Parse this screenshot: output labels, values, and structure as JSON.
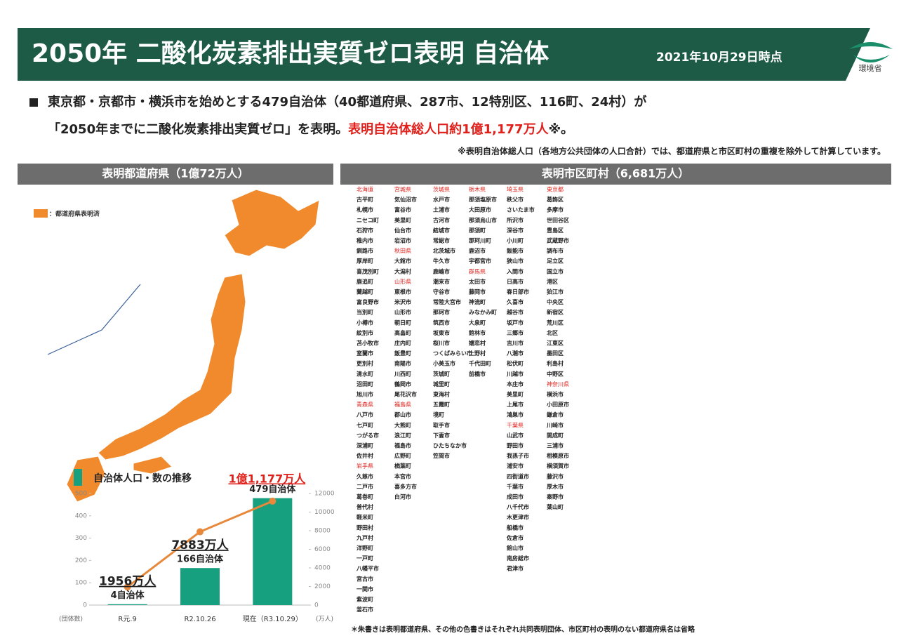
{
  "header": {
    "title": "2050年 二酸化炭素排出実質ゼロ表明 自治体",
    "date": "2021年10月29日時点",
    "logo": "環境省"
  },
  "summary": {
    "line1": "東京都・京都市・横浜市を始めとする479自治体（40都道府県、287市、12特別区、116町、24村）が",
    "line2": "「2050年までに二酸化炭素排出実質ゼロ」を表明。",
    "line2_red": "表明自治体総人口約1億1,177万人",
    "line2_end": "※。",
    "note": "※表明自治体総人口（各地方公共団体の人口合計）では、都道府県と市区町村の重複を除外して計算しています。"
  },
  "left_panel": {
    "title": "表明都道府県（1億72万人）",
    "legend": "：都道府県表明済"
  },
  "right_panel": {
    "title": "表明市区町村（6,681万人）"
  },
  "municipalities": {
    "columns": [
      [
        {
          "prefecture": "北海道",
          "names": [
            "古平町",
            "札幌市",
            "ニセコ町",
            "石狩市",
            "稚内市",
            "釧路市",
            "厚岸町",
            "喜茂別町",
            "鹿追町",
            "蘭越町",
            "富良野市",
            "当別町",
            "小樽市",
            "紋別市",
            "苫小牧市",
            "室蘭市",
            "更別村",
            "清水町",
            "沼田町",
            "旭川市"
          ]
        },
        {
          "prefecture": "青森県",
          "names": [
            "八戸市",
            "七戸町",
            "つがる市",
            "深浦町",
            "佐井村"
          ]
        },
        {
          "prefecture": "岩手県",
          "names": [
            "久慈市",
            "二戸市",
            "葛巻町",
            "普代村",
            "軽米町",
            "野田村",
            "九戸村",
            "洋野町",
            "一戸町",
            "八幡平市",
            "宮古市",
            "一関市",
            "紫波町",
            "釜石市"
          ]
        }
      ],
      [
        {
          "prefecture": "宮城県",
          "names": [
            "気仙沼市",
            "富谷市",
            "美里町",
            "仙台市",
            "岩沼市"
          ]
        },
        {
          "prefecture": "秋田県",
          "names": [
            "大館市",
            "大潟村"
          ]
        },
        {
          "prefecture": "山形県",
          "names": [
            "東根市",
            "米沢市",
            "山形市",
            "朝日町",
            "高畠町",
            "庄内町",
            "飯豊町",
            "南陽市",
            "川西町",
            "鶴岡市",
            "尾花沢市"
          ]
        },
        {
          "prefecture": "福島県",
          "names": [
            "郡山市",
            "大熊町",
            "浪江町",
            "福島市",
            "広野町",
            "楢葉町",
            "本宮市",
            "喜多方市",
            "白河市"
          ]
        }
      ],
      [
        {
          "prefecture": "茨城県",
          "names": [
            "水戸市",
            "土浦市",
            "古河市",
            "結城市",
            "常総市",
            "北茨城市",
            "牛久市",
            "鹿嶋市",
            "潮来市",
            "守谷市",
            "常陸大宮市",
            "那珂市",
            "筑西市",
            "坂東市",
            "桜川市",
            "つくばみらい市",
            "小美玉市",
            "茨城町",
            "城里町",
            "東海村",
            "五霞町",
            "境町",
            "取手市",
            "下妻市",
            "ひたちなか市",
            "笠間市"
          ]
        }
      ],
      [
        {
          "prefecture": "栃木県",
          "names": [
            "那須塩原市",
            "大田原市",
            "那須烏山市",
            "那須町",
            "那珂川町",
            "鹿沼市",
            "宇都宮市"
          ]
        },
        {
          "prefecture": "群馬県",
          "names": [
            "太田市",
            "藤岡市",
            "神流町",
            "みなかみ町",
            "大泉町",
            "館林市",
            "嬬恋村",
            "上野村",
            "千代田町",
            "前橋市"
          ]
        }
      ],
      [
        {
          "prefecture": "埼玉県",
          "names": [
            "秩父市",
            "さいたま市",
            "所沢市",
            "深谷市",
            "小川町",
            "飯能市",
            "狭山市",
            "入間市",
            "日高市",
            "春日部市",
            "久喜市",
            "越谷市",
            "坂戸市",
            "三郷市",
            "吉川市",
            "八潮市",
            "松伏町",
            "川越市",
            "本庄市",
            "美里町",
            "上尾市",
            "鴻巣市"
          ]
        },
        {
          "prefecture": "千葉県",
          "names": [
            "山武市",
            "野田市",
            "我孫子市",
            "浦安市",
            "四街道市",
            "千葉市",
            "成田市",
            "八千代市",
            "木更津市",
            "船橋市",
            "佐倉市",
            "館山市",
            "南房総市",
            "君津市"
          ]
        }
      ],
      [
        {
          "prefecture": "東京都",
          "names": [
            "葛飾区",
            "多摩市",
            "世田谷区",
            "豊島区",
            "武蔵野市",
            "調布市",
            "足立区",
            "国立市",
            "港区",
            "狛江市",
            "中央区",
            "新宿区",
            "荒川区",
            "北区",
            "江東区",
            "墨田区",
            "利島村",
            "中野区"
          ]
        },
        {
          "prefecture": "神奈川県",
          "names": [
            "横浜市",
            "小田原市",
            "鎌倉市",
            "川崎市",
            "開成町",
            "三浦市",
            "相模原市",
            "横須賀市",
            "藤沢市",
            "厚木市",
            "秦野市",
            "葉山町"
          ]
        }
      ]
    ]
  },
  "footnote": "＊朱書きは表明都道府県、その他の色書きはそれぞれ共同表明団体、市区町村の表明のない都道府県名は省略",
  "chart_data": {
    "type": "bar_line",
    "title": "自治体人口・数の推移",
    "categories": [
      "R元.9",
      "R2.10.26",
      "現在（R3.10.29）"
    ],
    "ylabel": "(団体数)",
    "y2label": "(万人)",
    "series": [
      {
        "name": "自治体数",
        "color": "#16a07f",
        "values": [
          4,
          166,
          479
        ],
        "value_labels": [
          "4自治体",
          "166自治体",
          "479自治体"
        ]
      },
      {
        "name": "人口",
        "color": "#e8883a",
        "axis": "y2",
        "values": [
          1956,
          7883,
          11177
        ],
        "value_labels": [
          "1956万人",
          "7883万人",
          "1億1,177万人"
        ]
      }
    ],
    "ylim": [
      0,
      500
    ],
    "yticks": [
      0,
      100,
      200,
      300,
      400,
      500
    ],
    "y2lim": [
      0,
      12000
    ],
    "y2ticks": [
      0,
      2000,
      4000,
      6000,
      8000,
      10000,
      12000
    ]
  }
}
